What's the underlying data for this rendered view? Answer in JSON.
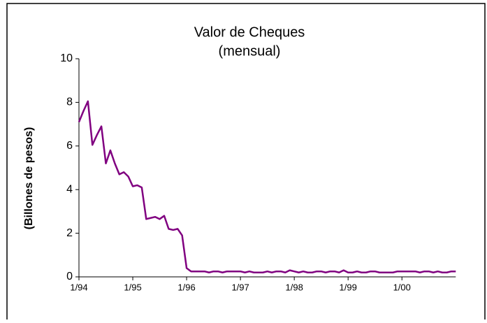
{
  "chart_data": {
    "type": "line",
    "title": "Valor de Cheques",
    "subtitle": "(mensual)",
    "y_label": "(Billones de pesos)",
    "categories": [
      "1/94",
      null,
      null,
      null,
      null,
      null,
      null,
      null,
      null,
      null,
      null,
      null,
      "1/95",
      null,
      null,
      null,
      null,
      null,
      null,
      null,
      null,
      null,
      null,
      null,
      "1/96",
      null,
      null,
      null,
      null,
      null,
      null,
      null,
      null,
      null,
      null,
      null,
      "1/97",
      null,
      null,
      null,
      null,
      null,
      null,
      null,
      null,
      null,
      null,
      null,
      "1/98",
      null,
      null,
      null,
      null,
      null,
      null,
      null,
      null,
      null,
      null,
      null,
      "1/99",
      null,
      null,
      null,
      null,
      null,
      null,
      null,
      null,
      null,
      null,
      null,
      "1/00",
      null,
      null,
      null,
      null,
      null,
      null,
      null,
      null,
      null,
      null,
      null,
      null
    ],
    "series": [
      {
        "name": "Valor de Cheques",
        "color": "#800080",
        "values": [
          7.1,
          7.6,
          8.05,
          6.05,
          6.5,
          6.9,
          5.2,
          5.8,
          5.2,
          4.7,
          4.8,
          4.6,
          4.15,
          4.2,
          4.1,
          2.65,
          2.7,
          2.75,
          2.65,
          2.8,
          2.2,
          2.15,
          2.2,
          1.9,
          0.4,
          0.25,
          0.25,
          0.25,
          0.25,
          0.2,
          0.25,
          0.25,
          0.2,
          0.25,
          0.25,
          0.25,
          0.25,
          0.2,
          0.25,
          0.2,
          0.2,
          0.2,
          0.25,
          0.2,
          0.25,
          0.25,
          0.2,
          0.3,
          0.25,
          0.2,
          0.25,
          0.2,
          0.2,
          0.25,
          0.25,
          0.2,
          0.25,
          0.25,
          0.2,
          0.3,
          0.2,
          0.2,
          0.25,
          0.2,
          0.2,
          0.25,
          0.25,
          0.2,
          0.2,
          0.2,
          0.2,
          0.25,
          0.25,
          0.25,
          0.25,
          0.25,
          0.2,
          0.25,
          0.25,
          0.2,
          0.25,
          0.2,
          0.2,
          0.25,
          0.25
        ]
      }
    ],
    "ylim": [
      0,
      10
    ],
    "yticks": [
      0,
      2,
      4,
      6,
      8,
      10
    ]
  }
}
